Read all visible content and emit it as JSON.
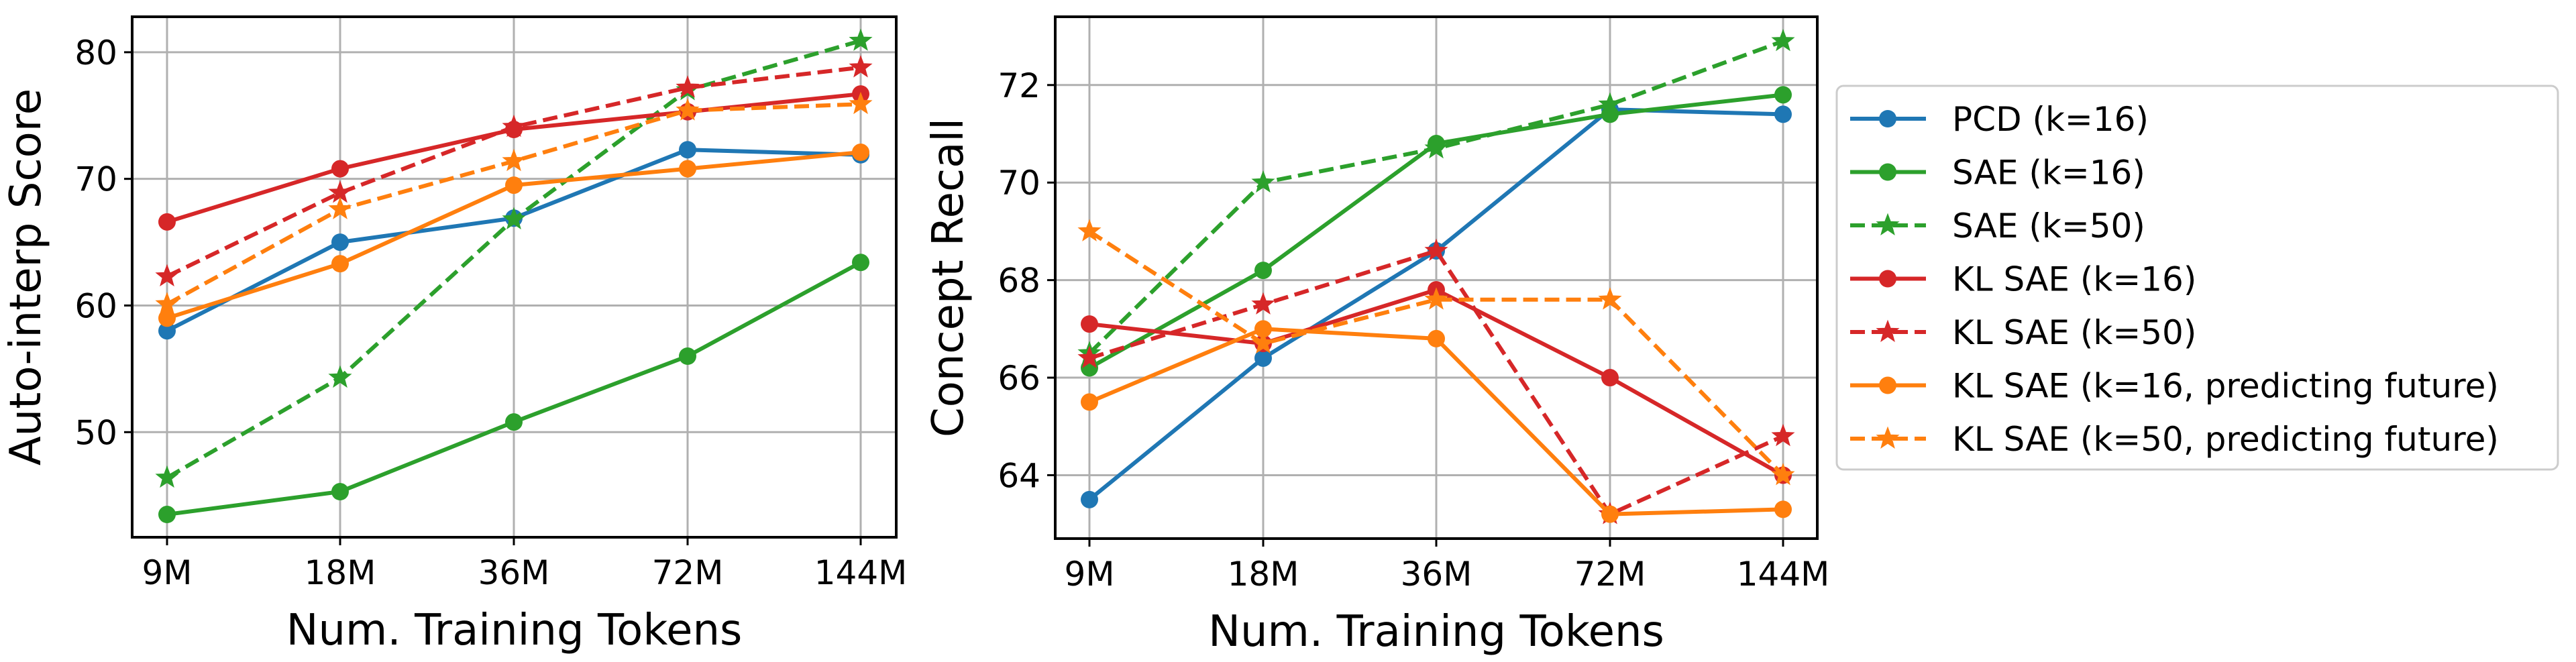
{
  "chart_data": [
    {
      "type": "line",
      "title": "",
      "xlabel": "Num. Training Tokens",
      "ylabel": "Auto-interp Score",
      "categories": [
        "9M",
        "18M",
        "36M",
        "72M",
        "144M"
      ],
      "ylim": [
        41.7,
        82.8
      ],
      "yticks": [
        50,
        60,
        70,
        80
      ],
      "grid": true,
      "series": [
        {
          "name": "PCD (k=16)",
          "color": "#1f77b4",
          "dash": false,
          "marker": "circle",
          "values": [
            58.0,
            65.0,
            66.9,
            72.3,
            71.9
          ]
        },
        {
          "name": "SAE (k=16)",
          "color": "#2ca02c",
          "dash": false,
          "marker": "circle",
          "values": [
            43.5,
            45.3,
            50.8,
            56.0,
            63.4
          ]
        },
        {
          "name": "SAE (k=50)",
          "color": "#2ca02c",
          "dash": true,
          "marker": "star",
          "values": [
            46.4,
            54.3,
            66.8,
            77.0,
            80.9
          ]
        },
        {
          "name": "KL SAE (k=16)",
          "color": "#d62728",
          "dash": false,
          "marker": "circle",
          "values": [
            66.6,
            70.8,
            73.9,
            75.3,
            76.7
          ]
        },
        {
          "name": "KL SAE (k=50)",
          "color": "#d62728",
          "dash": true,
          "marker": "star",
          "values": [
            62.3,
            68.9,
            74.1,
            77.2,
            78.8
          ]
        },
        {
          "name": "KL SAE (k=16, predicting future)",
          "color": "#ff7f0e",
          "dash": false,
          "marker": "circle",
          "values": [
            59.0,
            63.3,
            69.5,
            70.8,
            72.1
          ]
        },
        {
          "name": "KL SAE (k=50, predicting future)",
          "color": "#ff7f0e",
          "dash": true,
          "marker": "star",
          "values": [
            60.1,
            67.6,
            71.4,
            75.4,
            75.9
          ]
        }
      ]
    },
    {
      "type": "line",
      "title": "",
      "xlabel": "Num. Training Tokens",
      "ylabel": "Concept Recall",
      "categories": [
        "9M",
        "18M",
        "36M",
        "72M",
        "144M"
      ],
      "ylim": [
        62.7,
        73.4
      ],
      "yticks": [
        64,
        66,
        68,
        70,
        72
      ],
      "grid": true,
      "series": [
        {
          "name": "PCD (k=16)",
          "color": "#1f77b4",
          "dash": false,
          "marker": "circle",
          "values": [
            63.5,
            66.4,
            68.6,
            71.5,
            71.4
          ]
        },
        {
          "name": "SAE (k=16)",
          "color": "#2ca02c",
          "dash": false,
          "marker": "circle",
          "values": [
            66.2,
            68.2,
            70.8,
            71.4,
            71.8
          ]
        },
        {
          "name": "SAE (k=50)",
          "color": "#2ca02c",
          "dash": true,
          "marker": "star",
          "values": [
            66.5,
            70.0,
            70.7,
            71.6,
            72.9
          ]
        },
        {
          "name": "KL SAE (k=16)",
          "color": "#d62728",
          "dash": false,
          "marker": "circle",
          "values": [
            67.1,
            66.7,
            67.8,
            66.0,
            64.0
          ]
        },
        {
          "name": "KL SAE (k=50)",
          "color": "#d62728",
          "dash": true,
          "marker": "star",
          "values": [
            66.4,
            67.5,
            68.6,
            63.2,
            64.8
          ]
        },
        {
          "name": "KL SAE (k=16, predicting future)",
          "color": "#ff7f0e",
          "dash": false,
          "marker": "circle",
          "values": [
            65.5,
            67.0,
            66.8,
            63.2,
            63.3
          ]
        },
        {
          "name": "KL SAE (k=50, predicting future)",
          "color": "#ff7f0e",
          "dash": true,
          "marker": "star",
          "values": [
            69.0,
            66.7,
            67.6,
            67.6,
            64.0
          ]
        }
      ]
    }
  ],
  "legend": {
    "position": "right",
    "items": [
      {
        "label": "PCD (k=16)",
        "color": "#1f77b4",
        "dash": false,
        "marker": "circle"
      },
      {
        "label": "SAE (k=16)",
        "color": "#2ca02c",
        "dash": false,
        "marker": "circle"
      },
      {
        "label": "SAE (k=50)",
        "color": "#2ca02c",
        "dash": true,
        "marker": "star"
      },
      {
        "label": "KL SAE (k=16)",
        "color": "#d62728",
        "dash": false,
        "marker": "circle"
      },
      {
        "label": "KL SAE (k=50)",
        "color": "#d62728",
        "dash": true,
        "marker": "star"
      },
      {
        "label": "KL SAE (k=16, predicting future)",
        "color": "#ff7f0e",
        "dash": false,
        "marker": "circle"
      },
      {
        "label": "KL SAE (k=50, predicting future)",
        "color": "#ff7f0e",
        "dash": true,
        "marker": "star"
      }
    ]
  },
  "colors": {
    "grid": "#b0b0b0",
    "axis": "#000000",
    "legend_border": "#cccccc"
  }
}
